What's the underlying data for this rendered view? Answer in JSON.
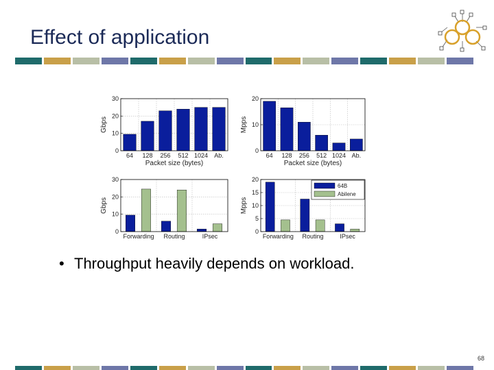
{
  "slide": {
    "title": "Effect of application",
    "bullet": "Throughput heavily depends on workload.",
    "page_number": "68"
  },
  "colors": {
    "title": "#1b2a57",
    "stripe": [
      "#1f6b6b",
      "#c9a049",
      "#b8bfa6",
      "#6e77a8"
    ],
    "bar_dark": "#0a1e9c",
    "bar_light": "#a4c08e"
  },
  "chart_data": [
    {
      "type": "bar",
      "categories": [
        "64",
        "128",
        "256",
        "512",
        "1024",
        "Ab."
      ],
      "values": [
        9.5,
        17,
        23,
        24,
        25,
        25
      ],
      "xlabel": "Packet size (bytes)",
      "ylabel": "Gbps",
      "ylim": [
        0,
        30
      ],
      "yticks": [
        0,
        10,
        20,
        30
      ],
      "grid": true
    },
    {
      "type": "bar",
      "categories": [
        "64",
        "128",
        "256",
        "512",
        "1024",
        "Ab."
      ],
      "values": [
        19,
        16.5,
        11,
        6,
        3,
        4.5
      ],
      "xlabel": "Packet size (bytes)",
      "ylabel": "Mpps",
      "ylim": [
        0,
        20
      ],
      "yticks": [
        0,
        10,
        20
      ],
      "grid": true
    },
    {
      "type": "bar",
      "categories": [
        "Forwarding",
        "Routing",
        "IPsec"
      ],
      "series": [
        {
          "values": [
            9.5,
            6,
            1.5
          ]
        },
        {
          "values": [
            24.5,
            24,
            4.5
          ]
        }
      ],
      "xlabel": "",
      "ylabel": "Gbps",
      "ylim": [
        0,
        30
      ],
      "yticks": [
        0,
        10,
        20,
        30
      ],
      "grid": true
    },
    {
      "type": "bar",
      "categories": [
        "Forwarding",
        "Routing",
        "IPsec"
      ],
      "series": [
        {
          "name": "64B",
          "values": [
            19,
            12.5,
            3
          ]
        },
        {
          "name": "Abilene",
          "values": [
            4.5,
            4.5,
            1
          ]
        }
      ],
      "xlabel": "",
      "ylabel": "Mpps",
      "ylim": [
        0,
        20
      ],
      "yticks": [
        0,
        5,
        10,
        15,
        20
      ],
      "grid": true,
      "legend": "top-right"
    }
  ]
}
